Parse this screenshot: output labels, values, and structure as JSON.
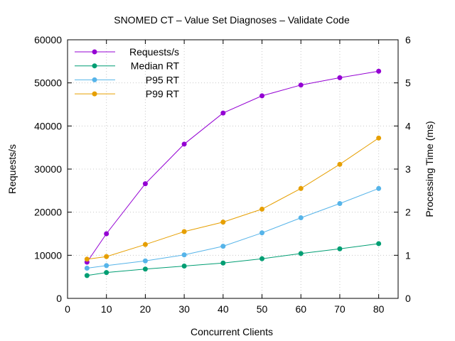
{
  "chart_data": {
    "type": "line",
    "title": "SNOMED CT – Value Set Diagnoses – Validate Code",
    "xlabel": "Concurrent Clients",
    "ylabel": "Requests/s",
    "y2label": "Processing Time (ms)",
    "xlim": [
      0,
      85
    ],
    "ylim": [
      0,
      60000
    ],
    "y2lim": [
      0,
      6
    ],
    "xticks": [
      0,
      10,
      20,
      30,
      40,
      50,
      60,
      70,
      80
    ],
    "yticks": [
      0,
      10000,
      20000,
      30000,
      40000,
      50000,
      60000
    ],
    "y2ticks": [
      0,
      1,
      2,
      3,
      4,
      5,
      6
    ],
    "grid": true,
    "legend_position": "top-left",
    "x": [
      5,
      10,
      20,
      30,
      40,
      50,
      60,
      70,
      80
    ],
    "series": [
      {
        "name": "Requests/s",
        "axis": "y",
        "color": "#9400d3",
        "values": [
          8400,
          15000,
          26600,
          35800,
          43000,
          47000,
          49500,
          51200,
          52700
        ]
      },
      {
        "name": "Median RT",
        "axis": "y2",
        "color": "#009e73",
        "values": [
          0.53,
          0.6,
          0.68,
          0.75,
          0.82,
          0.92,
          1.04,
          1.15,
          1.27
        ]
      },
      {
        "name": "P95 RT",
        "axis": "y2",
        "color": "#56b4e9",
        "values": [
          0.7,
          0.76,
          0.87,
          1.01,
          1.21,
          1.52,
          1.87,
          2.2,
          2.55
        ]
      },
      {
        "name": "P99 RT",
        "axis": "y2",
        "color": "#e69f00",
        "values": [
          0.91,
          0.97,
          1.25,
          1.55,
          1.77,
          2.07,
          2.55,
          3.11,
          3.72
        ]
      }
    ]
  }
}
